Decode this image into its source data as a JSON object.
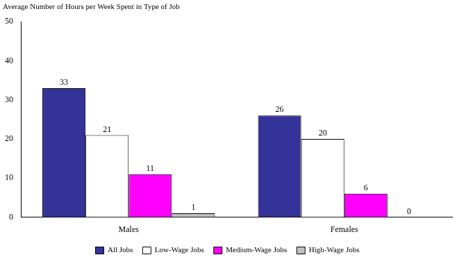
{
  "chart_data": {
    "type": "bar",
    "title": "Average Number of Hours per Week Spent in Type of Job",
    "categories": [
      "Males",
      "Females"
    ],
    "series": [
      {
        "name": "All Jobs",
        "color": "#333399",
        "values": [
          33,
          26
        ]
      },
      {
        "name": "Low-Wage Jobs",
        "color": "#ffffff",
        "values": [
          21,
          20
        ]
      },
      {
        "name": "Medium-Wage Jobs",
        "color": "#ff00ff",
        "values": [
          11,
          6
        ]
      },
      {
        "name": "High-Wage Jobs",
        "color": "#c0c0c0",
        "values": [
          1,
          0
        ]
      }
    ],
    "ylim": [
      0,
      50
    ],
    "yticks": [
      0,
      10,
      20,
      30,
      40,
      50
    ],
    "grid": false,
    "legend": "bottom",
    "data_labels": true
  }
}
